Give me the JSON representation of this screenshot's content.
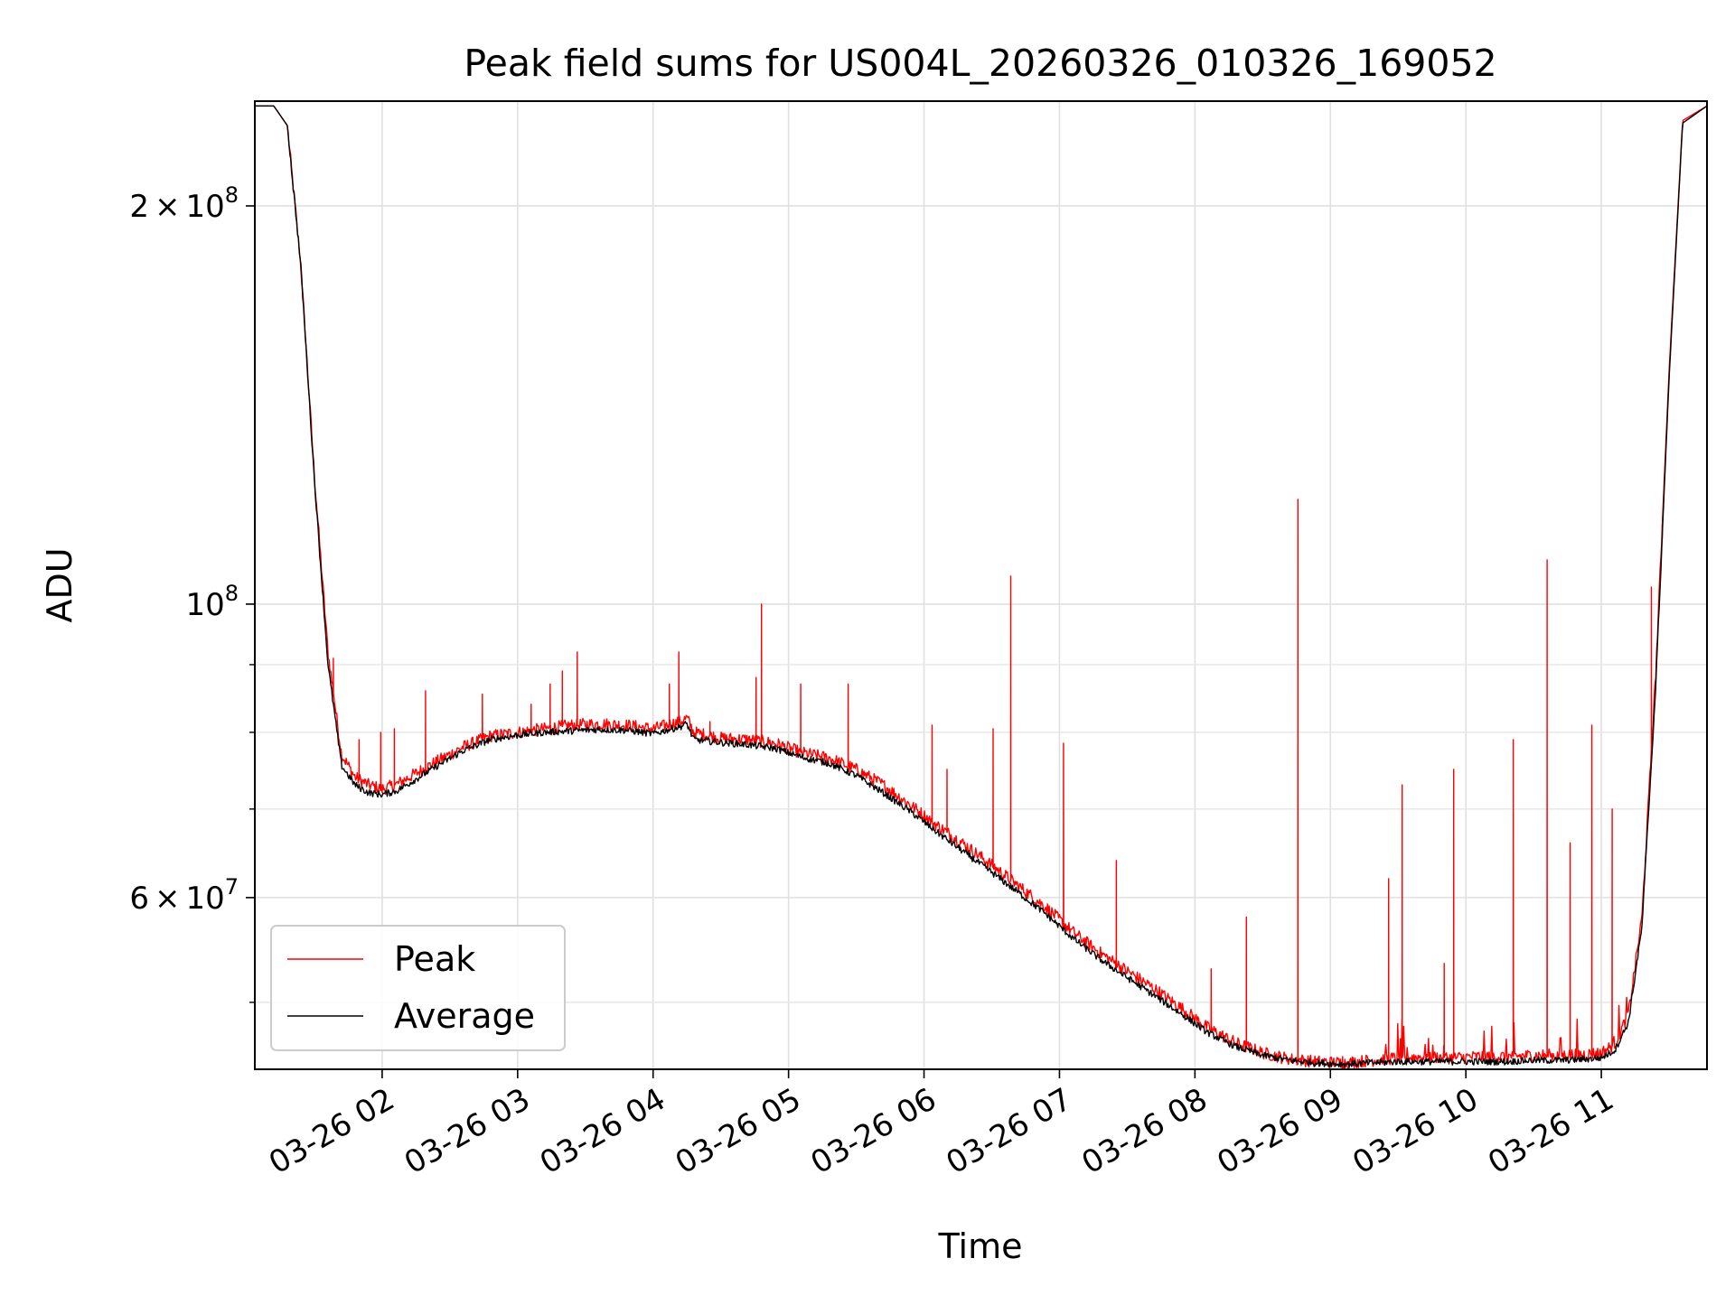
{
  "chart_data": {
    "type": "line",
    "title": "Peak field sums for US004L_20260326_010326_169052",
    "xlabel": "Time",
    "ylabel": "ADU",
    "yscale": "log",
    "ylim": [
      44500000,
      240000000
    ],
    "xlim_hours": [
      1.06,
      11.78
    ],
    "x_unit": "hours since 03-26 00:00",
    "grid": true,
    "legend_position": "lower-left",
    "x_ticks": [
      {
        "value": 2,
        "label": "03-26 02"
      },
      {
        "value": 3,
        "label": "03-26 03"
      },
      {
        "value": 4,
        "label": "03-26 04"
      },
      {
        "value": 5,
        "label": "03-26 05"
      },
      {
        "value": 6,
        "label": "03-26 06"
      },
      {
        "value": 7,
        "label": "03-26 07"
      },
      {
        "value": 8,
        "label": "03-26 08"
      },
      {
        "value": 9,
        "label": "03-26 09"
      },
      {
        "value": 10,
        "label": "03-26 10"
      },
      {
        "value": 11,
        "label": "03-26 11"
      }
    ],
    "y_major_ticks": [
      {
        "value": 60000000,
        "mantissa": "6",
        "times": "×",
        "base": "10",
        "exponent": "7"
      },
      {
        "value": 100000000,
        "mantissa": "",
        "times": "",
        "base": "10",
        "exponent": "8"
      },
      {
        "value": 200000000,
        "mantissa": "2",
        "times": "×",
        "base": "10",
        "exponent": "8"
      }
    ],
    "y_minor_ticks": [
      50000000,
      70000000,
      80000000,
      90000000
    ],
    "series": [
      {
        "name": "Peak",
        "color": "#ff0000",
        "x": [
          1.06,
          1.2,
          1.3,
          1.4,
          1.5,
          1.6,
          1.7,
          1.8,
          1.9,
          2.0,
          2.1,
          2.2,
          2.4,
          2.6,
          2.8,
          3.0,
          3.2,
          3.4,
          3.6,
          3.8,
          4.0,
          4.2,
          4.25,
          4.3,
          4.5,
          4.7,
          4.9,
          5.1,
          5.3,
          5.5,
          5.7,
          5.9,
          6.1,
          6.3,
          6.5,
          6.7,
          6.9,
          7.1,
          7.3,
          7.5,
          7.7,
          7.9,
          8.1,
          8.3,
          8.5,
          8.7,
          8.9,
          9.1,
          9.3,
          9.5,
          9.7,
          9.9,
          10.1,
          10.3,
          10.5,
          10.7,
          10.9,
          11.0,
          11.1,
          11.2,
          11.3,
          11.4,
          11.5,
          11.6,
          11.78
        ],
        "y": [
          238000000,
          238000000,
          230000000,
          180000000,
          125000000,
          92000000,
          77000000,
          74000000,
          73000000,
          72500000,
          73000000,
          74000000,
          76000000,
          78000000,
          79500000,
          80000000,
          80500000,
          81000000,
          81200000,
          81000000,
          80500000,
          81500000,
          82000000,
          80000000,
          79200000,
          79000000,
          78500000,
          77200000,
          76500000,
          75000000,
          73000000,
          70500000,
          68000000,
          65800000,
          63500000,
          61200000,
          59000000,
          56500000,
          54500000,
          52800000,
          51200000,
          49500000,
          47800000,
          46600000,
          45800000,
          45300000,
          45100000,
          45000000,
          45200000,
          45400000,
          45500000,
          45400000,
          45500000,
          45500000,
          45600000,
          45600000,
          45700000,
          45800000,
          46500000,
          49000000,
          58000000,
          88000000,
          150000000,
          232000000,
          238000000
        ],
        "spikes": [
          [
            1.64,
            91000000
          ],
          [
            1.83,
            79000000
          ],
          [
            1.99,
            80000000
          ],
          [
            2.09,
            80500000
          ],
          [
            2.32,
            86000000
          ],
          [
            2.74,
            85500000
          ],
          [
            3.1,
            84000000
          ],
          [
            3.24,
            87000000
          ],
          [
            3.33,
            89000000
          ],
          [
            3.44,
            92000000
          ],
          [
            4.12,
            87000000
          ],
          [
            4.19,
            92000000
          ],
          [
            4.42,
            81500000
          ],
          [
            4.76,
            88000000
          ],
          [
            4.8,
            100000000
          ],
          [
            5.09,
            87000000
          ],
          [
            5.44,
            87000000
          ],
          [
            6.06,
            81000000
          ],
          [
            6.17,
            75000000
          ],
          [
            6.51,
            80500000
          ],
          [
            6.64,
            105000000
          ],
          [
            7.03,
            78500000
          ],
          [
            7.42,
            64000000
          ],
          [
            8.12,
            53000000
          ],
          [
            8.38,
            58000000
          ],
          [
            8.76,
            120000000
          ],
          [
            9.09,
            45500000
          ],
          [
            9.43,
            62000000
          ],
          [
            9.53,
            73000000
          ],
          [
            9.84,
            53500000
          ],
          [
            9.91,
            75000000
          ],
          [
            10.35,
            79000000
          ],
          [
            10.6,
            108000000
          ],
          [
            10.77,
            66000000
          ],
          [
            10.93,
            81000000
          ],
          [
            11.08,
            70000000
          ],
          [
            11.37,
            103000000
          ],
          [
            11.45,
            112000000
          ]
        ]
      },
      {
        "name": "Average",
        "color": "#000000",
        "x": [
          1.06,
          1.2,
          1.3,
          1.4,
          1.5,
          1.6,
          1.7,
          1.8,
          1.9,
          2.0,
          2.1,
          2.2,
          2.4,
          2.6,
          2.8,
          3.0,
          3.2,
          3.4,
          3.6,
          3.8,
          4.0,
          4.2,
          4.25,
          4.3,
          4.5,
          4.7,
          4.9,
          5.1,
          5.3,
          5.5,
          5.7,
          5.9,
          6.1,
          6.3,
          6.5,
          6.7,
          6.9,
          7.1,
          7.3,
          7.5,
          7.7,
          7.9,
          8.1,
          8.3,
          8.5,
          8.7,
          8.9,
          9.1,
          9.3,
          9.5,
          9.7,
          9.9,
          10.1,
          10.3,
          10.5,
          10.7,
          10.9,
          11.0,
          11.1,
          11.2,
          11.3,
          11.4,
          11.5,
          11.6,
          11.78
        ],
        "y": [
          238000000,
          238000000,
          230000000,
          180000000,
          124000000,
          90000000,
          75500000,
          73000000,
          72000000,
          71800000,
          72200000,
          73200000,
          75400000,
          77500000,
          79000000,
          79600000,
          80000000,
          80200000,
          80400000,
          80300000,
          79800000,
          80800000,
          81200000,
          79000000,
          78600000,
          78300000,
          77800000,
          76600000,
          75800000,
          74200000,
          72000000,
          69700000,
          67200000,
          64900000,
          62700000,
          60500000,
          58300000,
          55900000,
          53900000,
          52200000,
          50600000,
          49000000,
          47400000,
          46300000,
          45600000,
          45200000,
          45000000,
          44900000,
          45000000,
          45100000,
          45100000,
          45100000,
          45100000,
          45100000,
          45200000,
          45200000,
          45300000,
          45400000,
          46000000,
          48300000,
          57000000,
          86000000,
          148000000,
          231000000,
          238000000
        ]
      }
    ],
    "legend": [
      {
        "label": "Peak",
        "color": "#ff0000"
      },
      {
        "label": "Average",
        "color": "#000000"
      }
    ]
  }
}
